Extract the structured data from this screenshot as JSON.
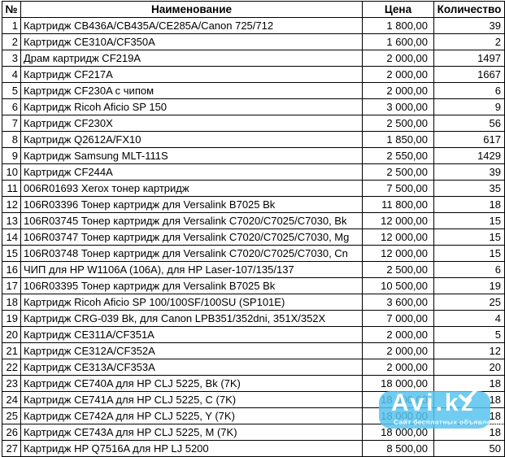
{
  "table": {
    "columns": [
      {
        "key": "num",
        "label": "№"
      },
      {
        "key": "name",
        "label": "Наименование"
      },
      {
        "key": "price",
        "label": "Цена"
      },
      {
        "key": "qty",
        "label": "Количество"
      }
    ],
    "rows": [
      {
        "num": "1",
        "name": "Картридж CB436A/CB435A/CE285A/Canon 725/712",
        "price": "1 800,00",
        "qty": "39"
      },
      {
        "num": "2",
        "name": "Картридж CE310A/CF350A",
        "price": "1 600,00",
        "qty": "2"
      },
      {
        "num": "3",
        "name": "Драм картридж CF219A",
        "price": "2 000,00",
        "qty": "1497"
      },
      {
        "num": "4",
        "name": "Картридж CF217A",
        "price": "2 000,00",
        "qty": "1667"
      },
      {
        "num": "5",
        "name": "Картридж CF230A с чипом",
        "price": "2 000,00",
        "qty": "6"
      },
      {
        "num": "6",
        "name": "Картридж Ricoh Aficio SP 150",
        "price": "3 000,00",
        "qty": "9"
      },
      {
        "num": "7",
        "name": "Картридж CF230X",
        "price": "2 500,00",
        "qty": "56"
      },
      {
        "num": "8",
        "name": "Картридж Q2612A/FX10",
        "price": "1 850,00",
        "qty": "617"
      },
      {
        "num": "9",
        "name": "Картридж Samsung MLT-111S",
        "price": "2 550,00",
        "qty": "1429"
      },
      {
        "num": "10",
        "name": "Картридж CF244A",
        "price": "2 500,00",
        "qty": "39"
      },
      {
        "num": "11",
        "name": "006R01693 Xerox тонер картридж",
        "price": "7 500,00",
        "qty": "35"
      },
      {
        "num": "12",
        "name": "106R03396 Тонер картридж для Versalink B7025 Bk",
        "price": "11 800,00",
        "qty": "18"
      },
      {
        "num": "13",
        "name": "106R03745 Тонер картридж для Versalink C7020/C7025/C7030, Bk",
        "price": "12 000,00",
        "qty": "15"
      },
      {
        "num": "14",
        "name": "106R03747 Тонер картридж для Versalink C7020/C7025/C7030, Mg",
        "price": "12 000,00",
        "qty": "15"
      },
      {
        "num": "15",
        "name": "106R03748 Тонер картридж для Versalink C7020/C7025/C7030, Cn",
        "price": "12 000,00",
        "qty": "15"
      },
      {
        "num": "16",
        "name": "ЧИП для HP W1106A (106A), для HP Laser-107/135/137",
        "price": "2 500,00",
        "qty": "6"
      },
      {
        "num": "17",
        "name": "106R03395 Тонер картридж для Versalink B7025 Bk",
        "price": "10 500,00",
        "qty": "19"
      },
      {
        "num": "18",
        "name": "Картридж Ricoh Aficio SP 100/100SF/100SU (SP101E)",
        "price": "3 600,00",
        "qty": "25"
      },
      {
        "num": "19",
        "name": "Картридж CRG-039 Bk, для Canon LPB351/352dni, 351X/352X",
        "price": "7 000,00",
        "qty": "4"
      },
      {
        "num": "20",
        "name": "Картридж CE311A/CF351A",
        "price": "2 000,00",
        "qty": "5"
      },
      {
        "num": "21",
        "name": "Картридж CE312A/CF352A",
        "price": "2 000,00",
        "qty": "12"
      },
      {
        "num": "22",
        "name": "Картридж CE313A/CF353A",
        "price": "2 000,00",
        "qty": "20"
      },
      {
        "num": "23",
        "name": "Картридж CE740A для HP CLJ 5225, Bk (7K)",
        "price": "18 000,00",
        "qty": "18"
      },
      {
        "num": "24",
        "name": "Картридж CE741A для HP CLJ 5225, C (7K)",
        "price": "18 000,00",
        "qty": "18"
      },
      {
        "num": "25",
        "name": "Картридж CE742A для HP CLJ 5225, Y (7K)",
        "price": "18 000,00",
        "qty": "18"
      },
      {
        "num": "26",
        "name": "Картридж CE743A для HP CLJ 5225, M (7K)",
        "price": "18 000,00",
        "qty": "18"
      },
      {
        "num": "27",
        "name": "Картридж HP Q7516A для HP LJ 5200",
        "price": "8 500,00",
        "qty": "50"
      }
    ]
  },
  "watermark": {
    "brand": "Avi.kz",
    "tagline": "Сайт бесплатных объявлений",
    "color": "#55C3EE",
    "checkmark_icon": "check-icon"
  }
}
